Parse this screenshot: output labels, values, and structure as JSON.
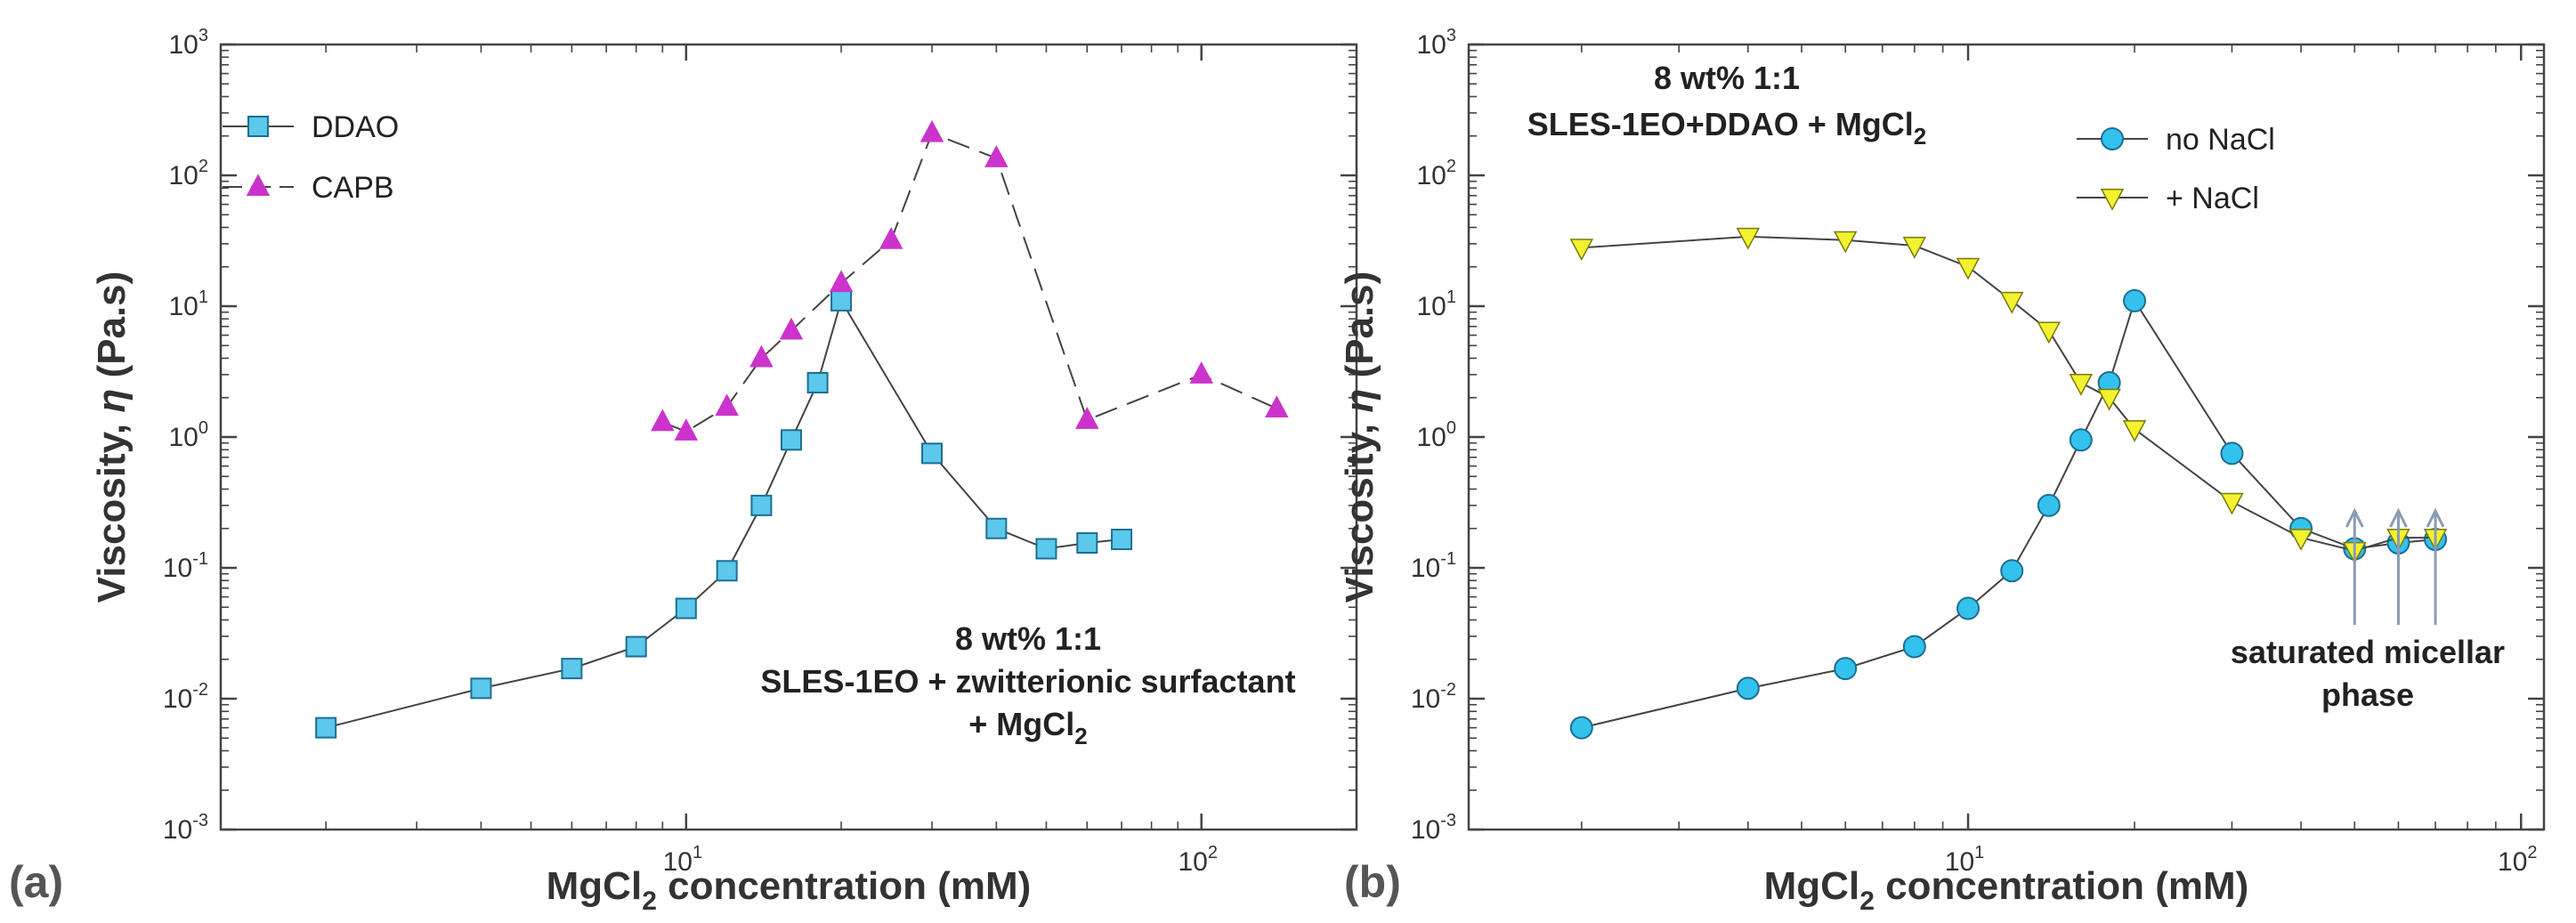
{
  "chart_data": [
    {
      "type": "line",
      "panel_label": "(a)",
      "xlabel": {
        "main": "MgCl",
        "sub": "2",
        "rest": " concentration (mM)"
      },
      "ylabel": {
        "main": "Viscosity, ",
        "symbol": "η",
        "rest": " (Pa.s)"
      },
      "xscale": "log",
      "yscale": "log",
      "xlim": [
        1.25,
        200
      ],
      "ylim": [
        0.001,
        1000
      ],
      "x_ticks": [
        {
          "base": "10",
          "exp": "1",
          "value": 10
        },
        {
          "base": "10",
          "exp": "2",
          "value": 100
        }
      ],
      "y_ticks": [
        {
          "base": "10",
          "exp": "-3",
          "value": 0.001
        },
        {
          "base": "10",
          "exp": "-2",
          "value": 0.01
        },
        {
          "base": "10",
          "exp": "-1",
          "value": 0.1
        },
        {
          "base": "10",
          "exp": "0",
          "value": 1
        },
        {
          "base": "10",
          "exp": "1",
          "value": 10
        },
        {
          "base": "10",
          "exp": "2",
          "value": 100
        },
        {
          "base": "10",
          "exp": "3",
          "value": 1000
        }
      ],
      "legend_position": "top-left",
      "series": [
        {
          "name": "DDAO",
          "marker": "square",
          "line": "solid",
          "color": "#5bc8ec",
          "stroke": "#1d6f91",
          "x": [
            2,
            4,
            6,
            8,
            10,
            12,
            14,
            16,
            18,
            20,
            30,
            40,
            50,
            60,
            70
          ],
          "y": [
            0.006,
            0.012,
            0.017,
            0.025,
            0.049,
            0.095,
            0.3,
            0.95,
            2.6,
            11,
            0.75,
            0.2,
            0.14,
            0.155,
            0.165
          ]
        },
        {
          "name": "CAPB",
          "marker": "triangle-up",
          "line": "dashed",
          "color": "#cc33cc",
          "stroke": "#cc33cc",
          "x": [
            9,
            10,
            12,
            14,
            16,
            20,
            25,
            30,
            40,
            60,
            100,
            140
          ],
          "y": [
            1.3,
            1.1,
            1.7,
            4.0,
            6.5,
            15,
            32,
            210,
            135,
            1.35,
            3.0,
            1.65
          ]
        }
      ],
      "annotations": [
        {
          "lines": [
            {
              "text": "8 wt% 1:1"
            },
            {
              "text": "SLES-1EO + zwitterionic surfactant"
            },
            {
              "text": "+ MgCl",
              "sub": "2"
            }
          ],
          "position": "lower-right"
        }
      ]
    },
    {
      "type": "line",
      "panel_label": "(b)",
      "xlabel": {
        "main": "MgCl",
        "sub": "2",
        "rest": " concentration (mM)"
      },
      "ylabel": {
        "main": "Viscosity, ",
        "symbol": "η",
        "rest": " (Pa.s)"
      },
      "xscale": "log",
      "yscale": "log",
      "xlim": [
        1.25,
        110
      ],
      "ylim": [
        0.001,
        1000
      ],
      "x_ticks": [
        {
          "base": "10",
          "exp": "1",
          "value": 10
        },
        {
          "base": "10",
          "exp": "2",
          "value": 100
        }
      ],
      "y_ticks": [
        {
          "base": "10",
          "exp": "-3",
          "value": 0.001
        },
        {
          "base": "10",
          "exp": "-2",
          "value": 0.01
        },
        {
          "base": "10",
          "exp": "-1",
          "value": 0.1
        },
        {
          "base": "10",
          "exp": "0",
          "value": 1
        },
        {
          "base": "10",
          "exp": "1",
          "value": 10
        },
        {
          "base": "10",
          "exp": "2",
          "value": 100
        },
        {
          "base": "10",
          "exp": "3",
          "value": 1000
        }
      ],
      "legend_position": "top-right",
      "series": [
        {
          "name": "no NaCl",
          "marker": "circle",
          "line": "solid",
          "color": "#33c2ee",
          "stroke": "#1d6f91",
          "x": [
            2,
            4,
            6,
            8,
            10,
            12,
            14,
            16,
            18,
            20,
            30,
            40,
            50,
            60,
            70
          ],
          "y": [
            0.006,
            0.012,
            0.017,
            0.025,
            0.049,
            0.095,
            0.3,
            0.95,
            2.6,
            11,
            0.75,
            0.2,
            0.14,
            0.155,
            0.165
          ]
        },
        {
          "name": "+ NaCl",
          "marker": "triangle-down",
          "line": "solid",
          "color": "#f2f230",
          "stroke": "#7a7a10",
          "x": [
            2,
            4,
            6,
            8,
            10,
            12,
            14,
            16,
            18,
            20,
            30,
            40,
            50,
            60,
            70
          ],
          "y": [
            28,
            34,
            32,
            29,
            20,
            11,
            6.5,
            2.6,
            2.0,
            1.15,
            0.32,
            0.17,
            0.135,
            0.17,
            0.17
          ]
        }
      ],
      "annotations": [
        {
          "lines": [
            {
              "text": "8 wt% 1:1"
            },
            {
              "text": "SLES-1EO+DDAO + MgCl",
              "sub": "2"
            }
          ],
          "position": "top-left"
        },
        {
          "lines": [
            {
              "text": "saturated micellar"
            },
            {
              "text": "phase"
            }
          ],
          "position": "bottom-right",
          "arrows_at_x": [
            50,
            60,
            70
          ]
        }
      ]
    }
  ]
}
